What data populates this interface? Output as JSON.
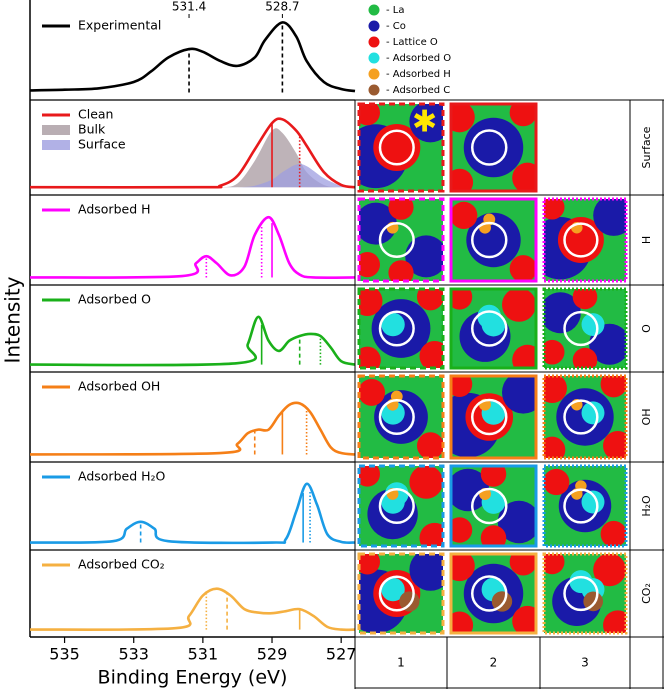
{
  "chart_data": [
    {
      "type": "line",
      "xlim": [
        536,
        526.6
      ],
      "ylim": [
        -0.05,
        1.12
      ],
      "top_xticks": [
        531.4,
        528.7
      ],
      "x": [
        536,
        535,
        534,
        533,
        532.5,
        532,
        531.4,
        531,
        530.5,
        530,
        529.5,
        529.2,
        528.7,
        528.3,
        528,
        527.5,
        527,
        526.6
      ],
      "series": [
        {
          "name": "Experimental",
          "color": "#000000",
          "values": [
            0.03,
            0.04,
            0.06,
            0.15,
            0.3,
            0.5,
            0.62,
            0.58,
            0.45,
            0.38,
            0.5,
            0.75,
            1.0,
            0.8,
            0.45,
            0.15,
            0.05,
            0.02
          ]
        }
      ],
      "markers": [
        {
          "x": 531.4,
          "style": "dashed"
        },
        {
          "x": 528.7,
          "style": "dashed"
        }
      ]
    },
    {
      "type": "line",
      "xlim": [
        536,
        526.6
      ],
      "ylim": [
        -0.05,
        1.05
      ],
      "x": [
        536,
        531,
        530.5,
        530,
        529.5,
        529,
        528.7,
        528.3,
        528,
        527.5,
        527,
        526.6
      ],
      "series": [
        {
          "name": "Clean",
          "color": "#e8191b",
          "values": [
            0,
            0,
            0.02,
            0.15,
            0.5,
            0.85,
            0.9,
            0.75,
            0.55,
            0.2,
            0.03,
            0
          ]
        },
        {
          "name": "Bulk",
          "color": "#a89aa0",
          "fill": true,
          "values": [
            0,
            0,
            0,
            0.05,
            0.35,
            0.75,
            0.72,
            0.45,
            0.2,
            0.03,
            0,
            0
          ]
        },
        {
          "name": "Surface",
          "color": "#9e9ee0",
          "fill": true,
          "values": [
            0,
            0,
            0,
            0,
            0.02,
            0.1,
            0.2,
            0.3,
            0.28,
            0.12,
            0.02,
            0
          ]
        }
      ],
      "markers": [
        {
          "x": 529.0,
          "style": "solid"
        },
        {
          "x": 528.2,
          "style": "dotted"
        }
      ]
    },
    {
      "type": "line",
      "xlim": [
        536,
        526.6
      ],
      "ylim": [
        -0.05,
        1.05
      ],
      "x": [
        536,
        531.6,
        531.2,
        530.9,
        530.6,
        530.2,
        529.8,
        529.5,
        529.1,
        528.8,
        528.5,
        528.2,
        527.8,
        526.6
      ],
      "series": [
        {
          "name": "Adsorbed H",
          "color": "#ff00ff",
          "values": [
            0,
            0.02,
            0.2,
            0.3,
            0.2,
            0.03,
            0.15,
            0.6,
            0.85,
            0.6,
            0.2,
            0.04,
            0,
            0
          ]
        }
      ],
      "markers": [
        {
          "x": 530.9,
          "style": "dotted"
        },
        {
          "x": 529.3,
          "style": "dotted"
        },
        {
          "x": 529.0,
          "style": "solid"
        }
      ]
    },
    {
      "type": "line",
      "xlim": [
        536,
        526.6
      ],
      "ylim": [
        -0.05,
        1.05
      ],
      "x": [
        536,
        530,
        529.7,
        529.4,
        529.1,
        528.8,
        528.5,
        528.2,
        527.9,
        527.6,
        527.3,
        527,
        526.6
      ],
      "series": [
        {
          "name": "Adsorbed O",
          "color": "#1ab01a",
          "values": [
            0,
            0.02,
            0.3,
            0.7,
            0.35,
            0.2,
            0.35,
            0.42,
            0.45,
            0.42,
            0.25,
            0.05,
            0
          ]
        }
      ],
      "markers": [
        {
          "x": 529.3,
          "style": "solid"
        },
        {
          "x": 528.2,
          "style": "dashed"
        },
        {
          "x": 527.6,
          "style": "dotted"
        }
      ]
    },
    {
      "type": "line",
      "xlim": [
        536,
        526.6
      ],
      "ylim": [
        -0.05,
        1.05
      ],
      "x": [
        536,
        530.5,
        530,
        529.7,
        529.4,
        529.1,
        528.8,
        528.5,
        528.2,
        527.9,
        527.6,
        527.3,
        527,
        526.6
      ],
      "series": [
        {
          "name": "Adsorbed OH",
          "color": "#f57f17",
          "values": [
            0,
            0.02,
            0.15,
            0.3,
            0.35,
            0.35,
            0.55,
            0.7,
            0.72,
            0.6,
            0.35,
            0.1,
            0.02,
            0
          ]
        }
      ],
      "markers": [
        {
          "x": 529.5,
          "style": "dashed"
        },
        {
          "x": 528.7,
          "style": "solid"
        },
        {
          "x": 528.0,
          "style": "dotted"
        }
      ]
    },
    {
      "type": "line",
      "xlim": [
        536,
        526.6
      ],
      "ylim": [
        -0.05,
        1.05
      ],
      "x": [
        536,
        533.6,
        533.2,
        532.8,
        532.4,
        532,
        529,
        528.6,
        528.3,
        528,
        527.7,
        527.4,
        527,
        526.6
      ],
      "series": [
        {
          "name": "Adsorbed H₂O",
          "color": "#1a9be6",
          "values": [
            0,
            0.02,
            0.2,
            0.3,
            0.2,
            0.02,
            0,
            0.05,
            0.45,
            0.85,
            0.55,
            0.12,
            0.01,
            0
          ]
        }
      ],
      "markers": [
        {
          "x": 532.8,
          "style": "dashed"
        },
        {
          "x": 528.1,
          "style": "solid"
        },
        {
          "x": 527.9,
          "style": "dotted"
        }
      ]
    },
    {
      "type": "line",
      "xlim": [
        536,
        526.6
      ],
      "ylim": [
        -0.05,
        1.05
      ],
      "x": [
        536,
        531.8,
        531.4,
        531,
        530.6,
        530.2,
        529.8,
        529.4,
        529,
        528.6,
        528.2,
        527.8,
        527.4,
        527,
        526.6
      ],
      "series": [
        {
          "name": "Adsorbed CO₂",
          "color": "#f5b041",
          "values": [
            0,
            0.02,
            0.2,
            0.5,
            0.6,
            0.5,
            0.3,
            0.25,
            0.24,
            0.27,
            0.3,
            0.2,
            0.04,
            0,
            0
          ]
        }
      ],
      "markers": [
        {
          "x": 530.9,
          "style": "dotted"
        },
        {
          "x": 530.3,
          "style": "dashed"
        },
        {
          "x": 528.2,
          "style": "solid"
        }
      ],
      "xticks": [
        535,
        533,
        531,
        529,
        527
      ],
      "xlabel": "Binding Energy (eV)"
    }
  ],
  "ylabel": "Intensity",
  "atom_legend": [
    {
      "label": "- La",
      "color": "#22bb44"
    },
    {
      "label": "- Co",
      "color": "#1a1aa8"
    },
    {
      "label": "- Lattice O",
      "color": "#ee1111"
    },
    {
      "label": "- Adsorbed O",
      "color": "#22e0e0"
    },
    {
      "label": "- Adsorbed H",
      "color": "#f5a020"
    },
    {
      "label": "- Adsorbed C",
      "color": "#9a5a30"
    }
  ],
  "structures": {
    "rows": [
      "Surface",
      "H",
      "O",
      "OH",
      "H₂O",
      "CO₂"
    ],
    "columns": [
      "1",
      "2",
      "3"
    ]
  }
}
